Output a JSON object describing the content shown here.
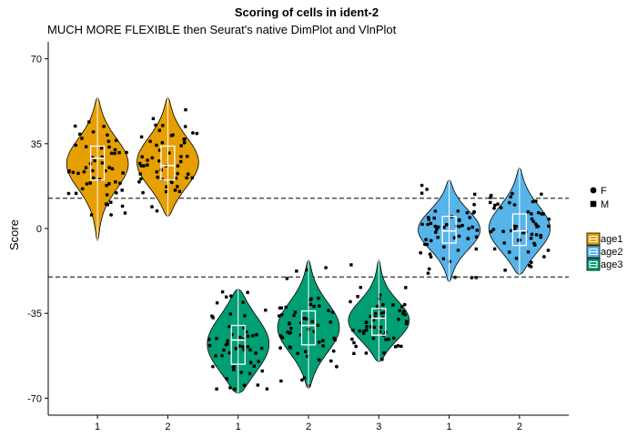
{
  "chart_data": {
    "type": "violin",
    "title": "Scoring of cells in ident-2",
    "subtitle": "MUCH MORE FLEXIBLE then Seurat's native DimPlot and VlnPlot",
    "xlabel": "",
    "ylabel": "Score",
    "ylim": [
      -77,
      77
    ],
    "y_ticks": [
      70,
      35,
      0,
      -35,
      -70
    ],
    "hlines": [
      12.5,
      -20
    ],
    "grid": false,
    "legend_position": "right",
    "shape_legend": [
      {
        "label": "F",
        "shape": "circle"
      },
      {
        "label": "M",
        "shape": "square"
      }
    ],
    "color_legend": [
      {
        "label": "age1",
        "color": "#E69F00"
      },
      {
        "label": "age2",
        "color": "#56B4E9"
      },
      {
        "label": "age3",
        "color": "#009E73"
      }
    ],
    "groups": [
      {
        "x_label": "1",
        "series": "age1",
        "min": -5,
        "max": 54,
        "q1": 20,
        "median": 29,
        "q3": 34
      },
      {
        "x_label": "2",
        "series": "age1",
        "min": 5,
        "max": 54,
        "q1": 20,
        "median": 26,
        "q3": 34
      },
      {
        "x_label": "1",
        "series": "age3",
        "min": -68,
        "max": -25,
        "q1": -56,
        "median": -46,
        "q3": -40
      },
      {
        "x_label": "2",
        "series": "age3",
        "min": -66,
        "max": -13,
        "q1": -48,
        "median": -40,
        "q3": -34
      },
      {
        "x_label": "3",
        "series": "age3",
        "min": -55,
        "max": -13,
        "q1": -44,
        "median": -37,
        "q3": -33
      },
      {
        "x_label": "1",
        "series": "age2",
        "min": -22,
        "max": 20,
        "q1": -6,
        "median": -1,
        "q3": 5
      },
      {
        "x_label": "2",
        "series": "age2",
        "min": -19,
        "max": 25,
        "q1": -7,
        "median": -1,
        "q3": 6
      }
    ]
  }
}
